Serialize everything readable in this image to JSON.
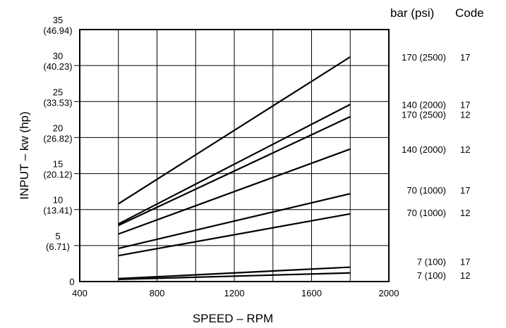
{
  "chart_data": {
    "type": "line",
    "title": "",
    "xlabel": "SPEED – RPM",
    "ylabel": "INPUT – kw (hp)",
    "xlim": [
      400,
      2000
    ],
    "ylim": [
      0,
      35
    ],
    "grid": true,
    "x_ticks": [
      {
        "value": 400,
        "label": "400"
      },
      {
        "value": 800,
        "label": "800"
      },
      {
        "value": 1200,
        "label": "1200"
      },
      {
        "value": 1600,
        "label": "1600"
      },
      {
        "value": 2000,
        "label": "2000"
      }
    ],
    "y_ticks": [
      {
        "value": 0,
        "label": "0",
        "sub": ""
      },
      {
        "value": 5,
        "label": "5",
        "sub": "(6.71)"
      },
      {
        "value": 10,
        "label": "10",
        "sub": "(13.41)"
      },
      {
        "value": 15,
        "label": "15",
        "sub": "(20.12)"
      },
      {
        "value": 20,
        "label": "20",
        "sub": "(26.82)"
      },
      {
        "value": 25,
        "label": "25",
        "sub": "(33.53)"
      },
      {
        "value": 30,
        "label": "30",
        "sub": "(40.23)"
      },
      {
        "value": 35,
        "label": "35",
        "sub": "(46.94)"
      }
    ],
    "right_header": {
      "pressure": "bar (psi)",
      "code": "Code"
    },
    "series": [
      {
        "pressure": "170 (2500)",
        "code": "17",
        "x": [
          600,
          1800
        ],
        "y": [
          10.8,
          31.2
        ],
        "label_y": 31.2
      },
      {
        "pressure": "140 (2000)",
        "code": "17",
        "x": [
          600,
          1800
        ],
        "y": [
          8.0,
          24.6
        ],
        "label_y": 24.6
      },
      {
        "pressure": "170 (2500)",
        "code": "12",
        "x": [
          600,
          1800
        ],
        "y": [
          7.8,
          22.9
        ],
        "label_y": 23.2
      },
      {
        "pressure": "140 (2000)",
        "code": "12",
        "x": [
          600,
          1800
        ],
        "y": [
          6.6,
          18.4
        ],
        "label_y": 18.4
      },
      {
        "pressure": "70 (1000)",
        "code": "17",
        "x": [
          600,
          1800
        ],
        "y": [
          4.6,
          12.2
        ],
        "label_y": 12.7
      },
      {
        "pressure": "70 (1000)",
        "code": "12",
        "x": [
          600,
          1800
        ],
        "y": [
          3.6,
          9.4
        ],
        "label_y": 9.6
      },
      {
        "pressure": "7 (100)",
        "code": "17",
        "x": [
          600,
          1800
        ],
        "y": [
          0.4,
          2.0
        ],
        "label_y": 2.8
      },
      {
        "pressure": "7 (100)",
        "code": "12",
        "x": [
          600,
          1800
        ],
        "y": [
          0.3,
          1.2
        ],
        "label_y": 0.9
      }
    ]
  }
}
